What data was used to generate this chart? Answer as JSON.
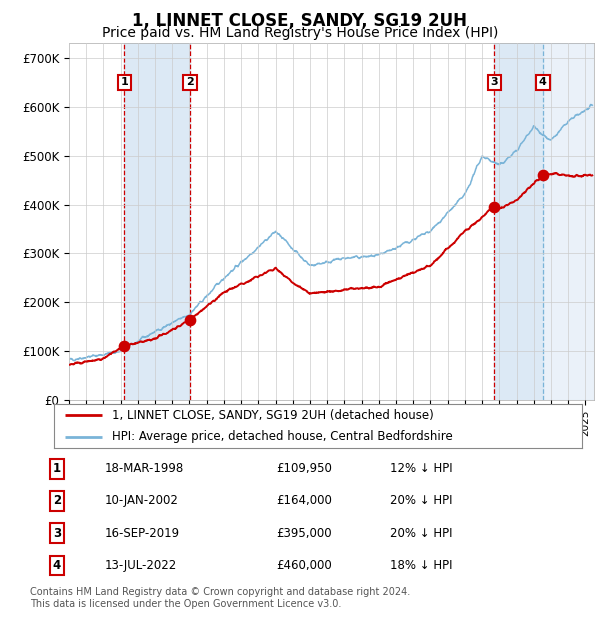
{
  "title": "1, LINNET CLOSE, SANDY, SG19 2UH",
  "subtitle": "Price paid vs. HM Land Registry's House Price Index (HPI)",
  "title_fontsize": 12,
  "subtitle_fontsize": 10,
  "background_color": "#ffffff",
  "plot_bg_color": "#ffffff",
  "grid_color": "#cccccc",
  "ylim": [
    0,
    730000
  ],
  "xlim_start": 1995.0,
  "xlim_end": 2025.5,
  "yticks": [
    0,
    100000,
    200000,
    300000,
    400000,
    500000,
    600000,
    700000
  ],
  "ytick_labels": [
    "£0",
    "£100K",
    "£200K",
    "£300K",
    "£400K",
    "£500K",
    "£600K",
    "£700K"
  ],
  "transactions": [
    {
      "num": 1,
      "date_dec": 1998.21,
      "price": 109950
    },
    {
      "num": 2,
      "date_dec": 2002.03,
      "price": 164000
    },
    {
      "num": 3,
      "date_dec": 2019.71,
      "price": 395000
    },
    {
      "num": 4,
      "date_dec": 2022.53,
      "price": 460000
    }
  ],
  "sale_marker_color": "#cc0000",
  "sale_line_color": "#cc0000",
  "hpi_line_color": "#7ab4d8",
  "vline_color_red": "#cc0000",
  "vline_color_blue": "#7ab4d8",
  "shade_color": "#dce9f5",
  "legend_label_red": "1, LINNET CLOSE, SANDY, SG19 2UH (detached house)",
  "legend_label_blue": "HPI: Average price, detached house, Central Bedfordshire",
  "footnote": "Contains HM Land Registry data © Crown copyright and database right 2024.\nThis data is licensed under the Open Government Licence v3.0.",
  "table_rows": [
    [
      "1",
      "18-MAR-1998",
      "£109,950",
      "12% ↓ HPI"
    ],
    [
      "2",
      "10-JAN-2002",
      "£164,000",
      "20% ↓ HPI"
    ],
    [
      "3",
      "16-SEP-2019",
      "£395,000",
      "20% ↓ HPI"
    ],
    [
      "4",
      "13-JUL-2022",
      "£460,000",
      "18% ↓ HPI"
    ]
  ]
}
